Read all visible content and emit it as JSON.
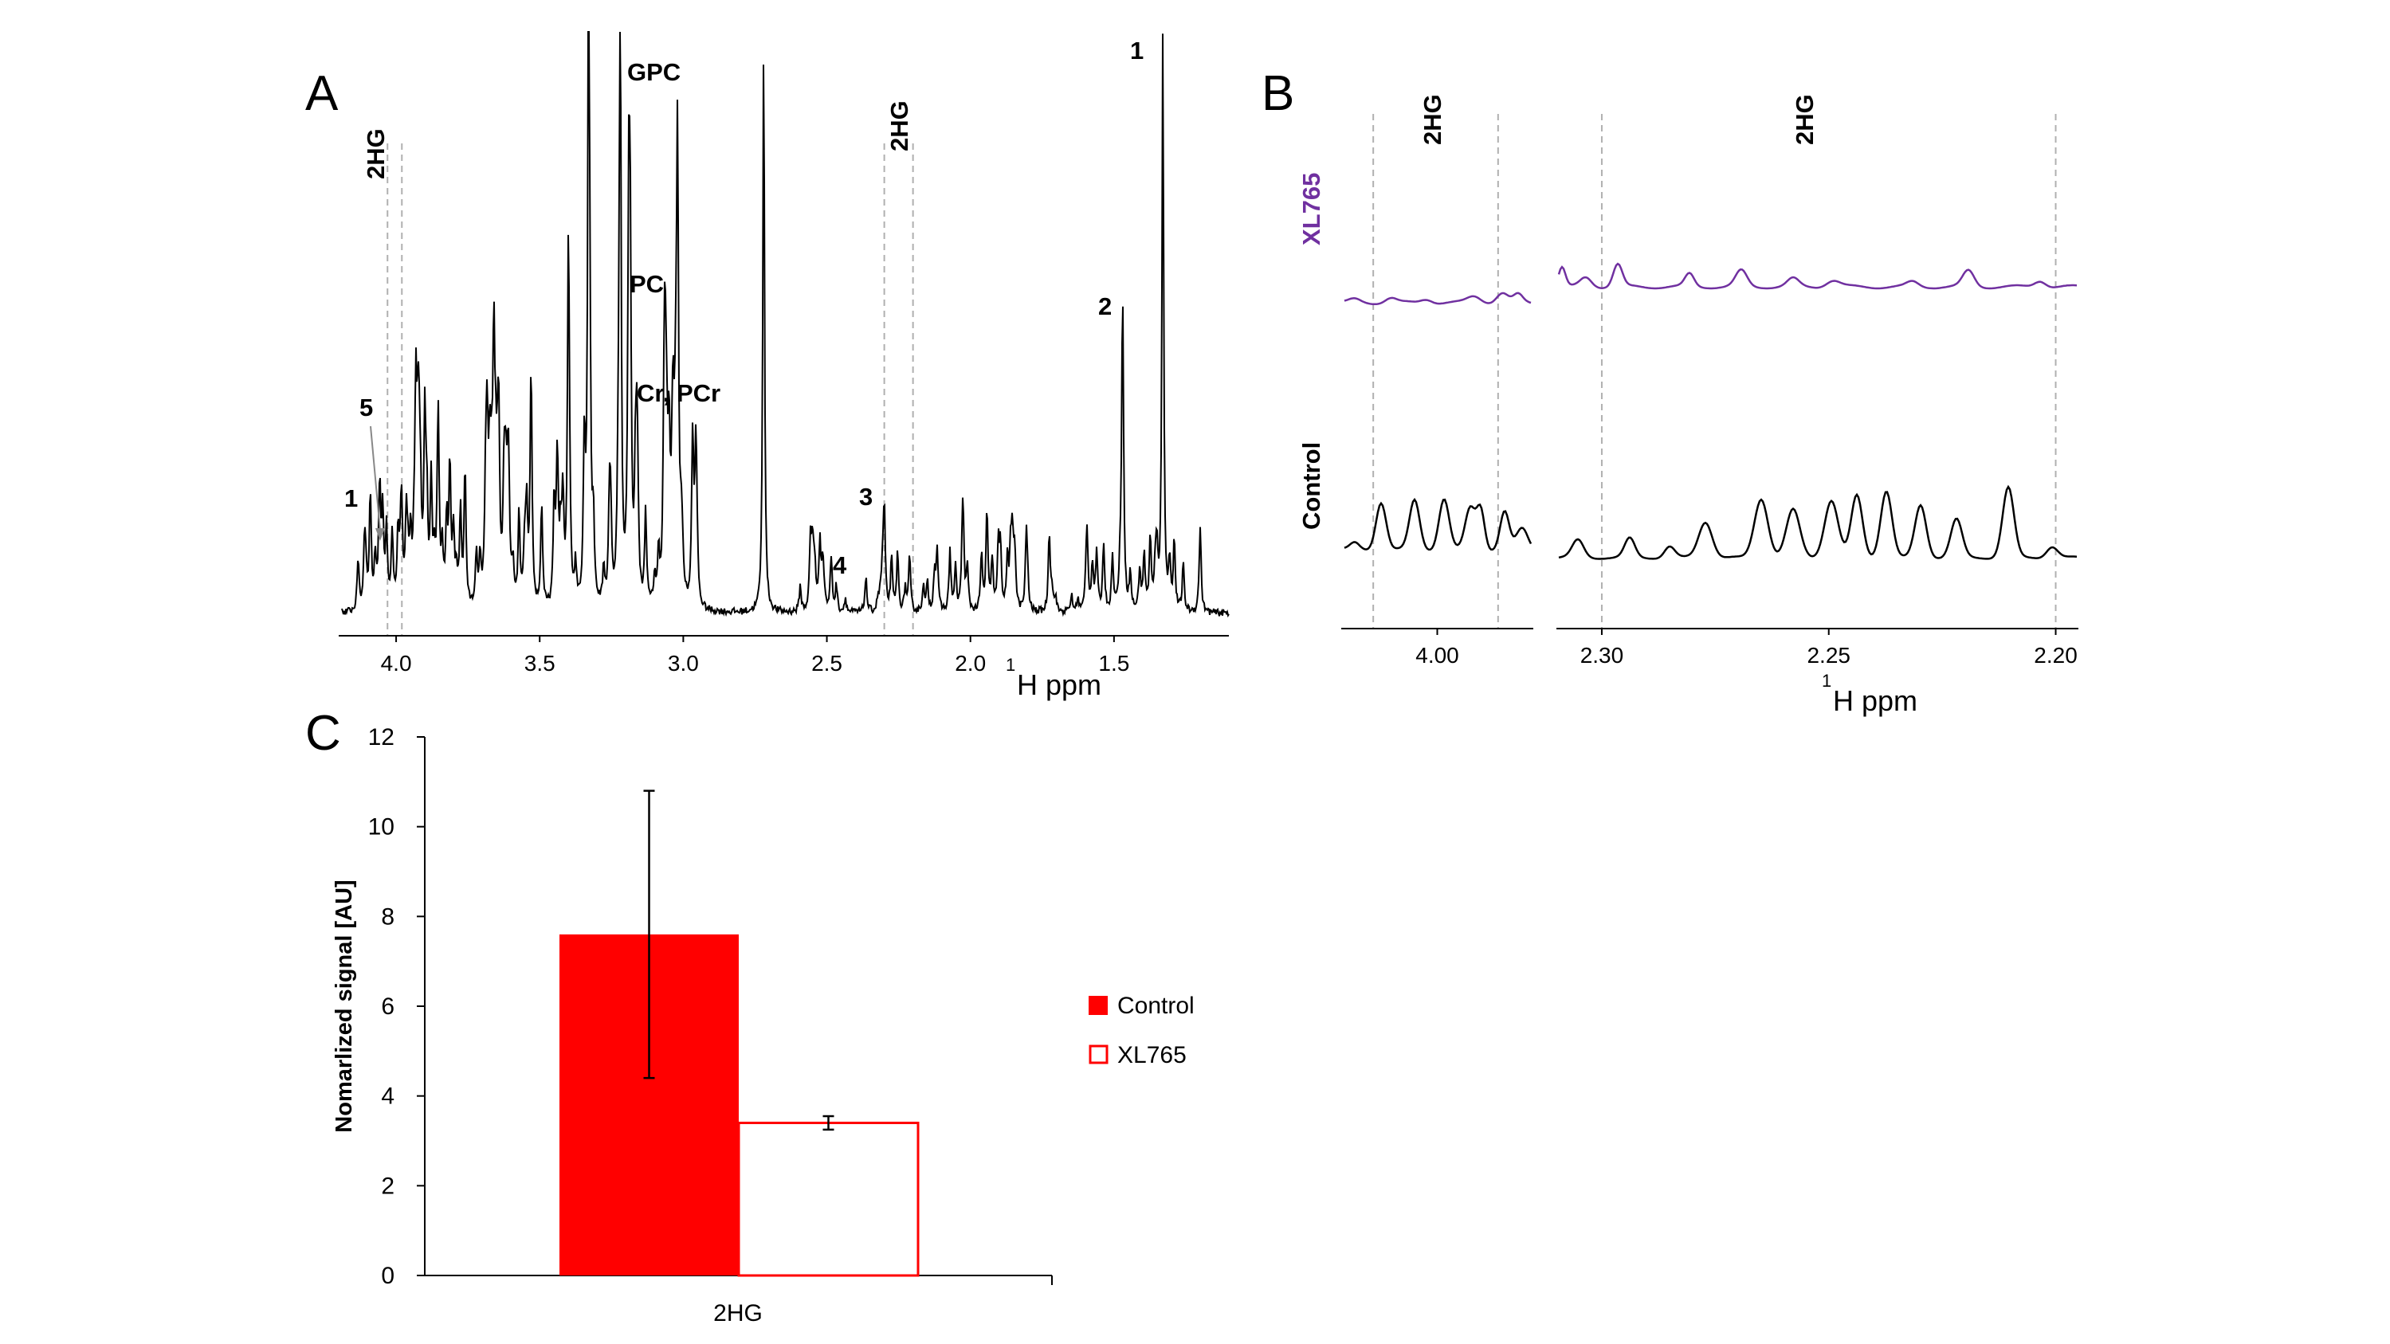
{
  "colors": {
    "control": "#ff0000",
    "xl765": "#7030a0",
    "axis": "#000000",
    "guide": "#b0b0b0"
  },
  "panels": {
    "a": {
      "letter": "A",
      "xlabel_sup": "1",
      "xlabel": "H ppm",
      "ticks": [
        "4.0",
        "3.5",
        "3.0",
        "2.5",
        "2.0",
        "1.5"
      ],
      "labels": {
        "gpc": "GPC",
        "pc": "PC",
        "cr_pcr": "Cr, PCr",
        "hg_left": "2HG",
        "hg_right": "2HG",
        "n1_left": "1",
        "n5": "5",
        "n3": "3",
        "n4": "4",
        "n2": "2",
        "n1_right": "1"
      }
    },
    "b": {
      "letter": "B",
      "xlabel_sup": "1",
      "xlabel": "H ppm",
      "ticks_left": [
        "4.00"
      ],
      "ticks_right": [
        "2.30",
        "2.25",
        "2.20"
      ],
      "hg_left": "2HG",
      "hg_right": "2HG",
      "row_top": "XL765",
      "row_bottom": "Control"
    }
  },
  "chart_data": [
    {
      "type": "line",
      "panel": "A",
      "title": "",
      "xlabel": "1H ppm",
      "xlim": [
        4.2,
        1.1
      ],
      "x_ticks": [
        4.0,
        3.5,
        3.0,
        2.5,
        2.0,
        1.5
      ],
      "peaks": [
        {
          "ppm": 4.09,
          "height": 0.2
        },
        {
          "ppm": 3.9,
          "height": 0.32
        },
        {
          "ppm": 3.76,
          "height": 0.24
        },
        {
          "ppm": 3.66,
          "height": 0.34
        },
        {
          "ppm": 3.53,
          "height": 0.41
        },
        {
          "ppm": 3.4,
          "height": 0.62
        },
        {
          "ppm": 3.33,
          "height": 1.0
        },
        {
          "ppm": 3.22,
          "height": 1.0
        },
        {
          "ppm": 3.19,
          "height": 0.6
        },
        {
          "ppm": 3.02,
          "height": 0.36
        },
        {
          "ppm": 2.72,
          "height": 1.0
        },
        {
          "ppm": 2.3,
          "height": 0.17
        },
        {
          "ppm": 1.47,
          "height": 0.55
        },
        {
          "ppm": 1.33,
          "height": 1.0
        },
        {
          "ppm": 1.2,
          "height": 0.15
        }
      ],
      "annotations": [
        {
          "label": "GPC",
          "ppm": 3.22
        },
        {
          "label": "PC",
          "ppm": 3.19
        },
        {
          "label": "Cr, PCr",
          "ppm": 3.02
        },
        {
          "label": "2HG",
          "ppm": [
            4.02,
            3.98
          ]
        },
        {
          "label": "2HG",
          "ppm": [
            2.3,
            2.2
          ]
        },
        {
          "label": "1",
          "ppm": 4.12
        },
        {
          "label": "5",
          "ppm": 4.08
        },
        {
          "label": "3",
          "ppm": 2.3
        },
        {
          "label": "4",
          "ppm": 2.36
        },
        {
          "label": "2",
          "ppm": 1.47
        },
        {
          "label": "1",
          "ppm": 1.33
        }
      ]
    },
    {
      "type": "line",
      "panel": "B",
      "xlabel": "1H ppm",
      "xlim_left": [
        4.03,
        3.97
      ],
      "xlim_right": [
        2.31,
        2.195
      ],
      "x_ticks_left": [
        4.0
      ],
      "x_ticks_right": [
        2.3,
        2.25,
        2.2
      ],
      "series": [
        {
          "name": "XL765",
          "description": "flat trace with small ripples"
        },
        {
          "name": "Control",
          "description": "multiplet structure, peaks near 4.00 and 2.26-2.21"
        }
      ]
    },
    {
      "type": "bar",
      "panel": "C",
      "letter": "C",
      "title": "",
      "categories": [
        "2HG"
      ],
      "series": [
        {
          "name": "Control",
          "values": [
            7.6
          ],
          "error": [
            3.2
          ],
          "style": "filled"
        },
        {
          "name": "XL765",
          "values": [
            3.4
          ],
          "error": [
            0.15
          ],
          "style": "outline"
        }
      ],
      "xlabel": "2HG",
      "ylabel": "Nomarlized signal [AU]",
      "ylim": [
        0,
        12
      ],
      "y_ticks": [
        "0",
        "2",
        "4",
        "6",
        "8",
        "10",
        "12"
      ],
      "legend": {
        "position": "right",
        "entries": [
          "Control",
          "XL765"
        ]
      }
    }
  ]
}
